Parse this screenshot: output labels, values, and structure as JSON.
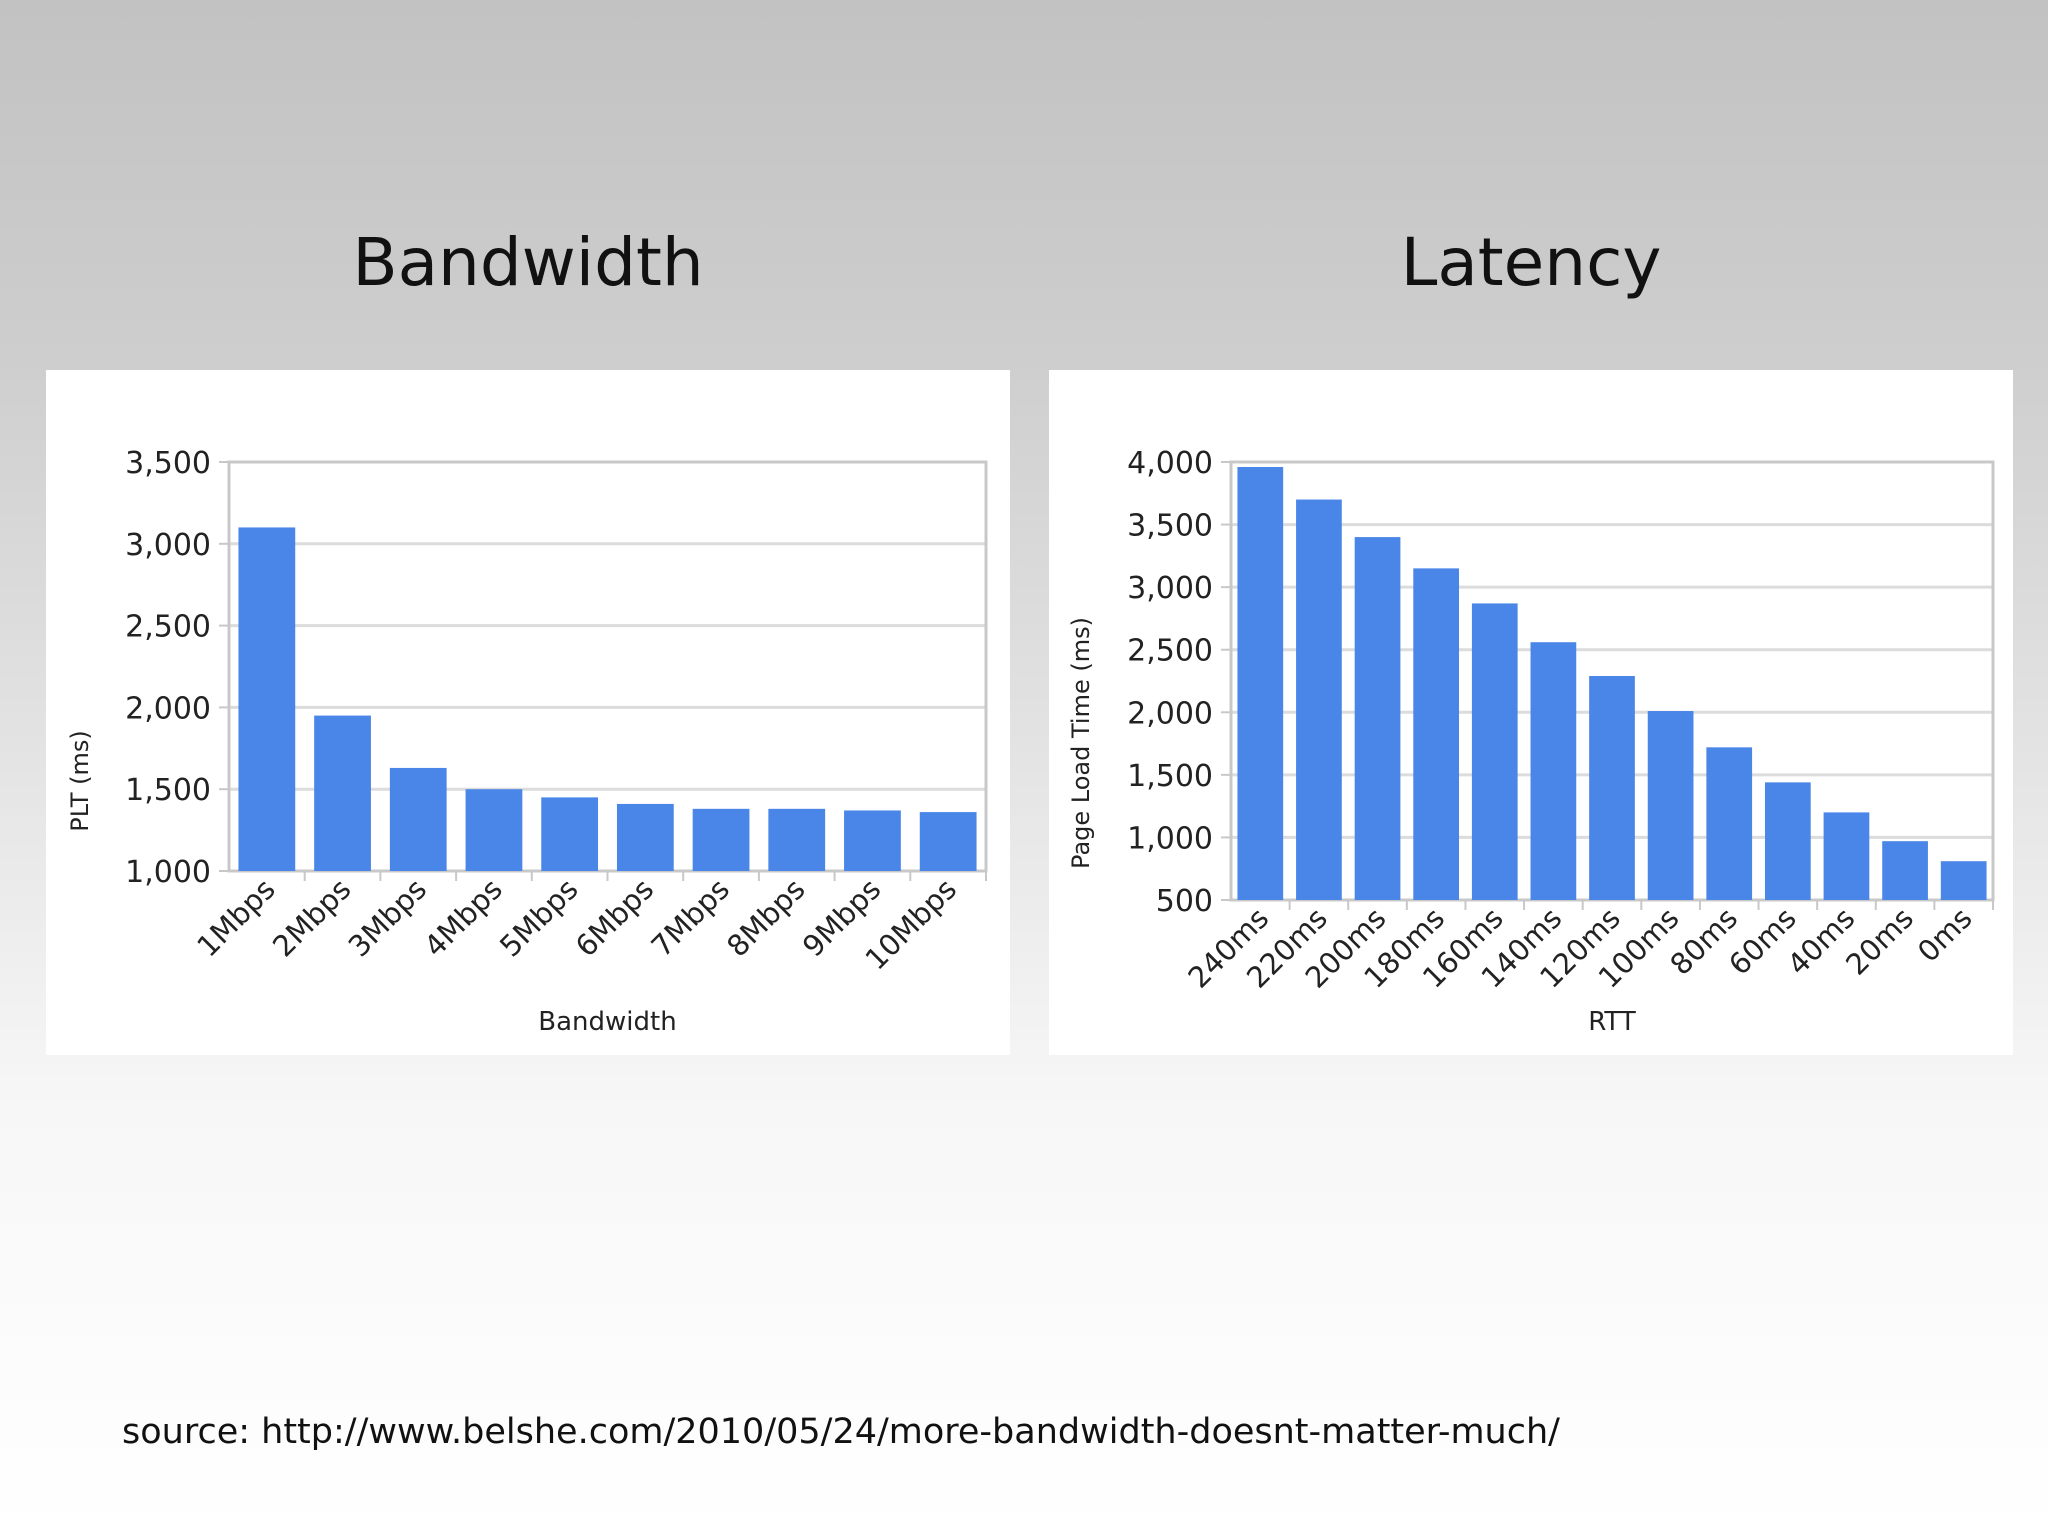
{
  "slide": {
    "headings": {
      "left": "Bandwidth",
      "right": "Latency"
    },
    "source": "source: http://www.belshe.com/2010/05/24/more-bandwidth-doesnt-matter-much/"
  },
  "colors": {
    "bar": "#4a86e8",
    "grid": "#dcdcdc",
    "axis": "#c8c8c8",
    "text": "#222222"
  },
  "chart_data": [
    {
      "type": "bar",
      "title": "",
      "xlabel": "Bandwidth",
      "ylabel": "PLT (ms)",
      "categories": [
        "1Mbps",
        "2Mbps",
        "3Mbps",
        "4Mbps",
        "5Mbps",
        "6Mbps",
        "7Mbps",
        "8Mbps",
        "9Mbps",
        "10Mbps"
      ],
      "values": [
        3100,
        1950,
        1630,
        1500,
        1450,
        1410,
        1380,
        1380,
        1370,
        1360
      ],
      "ylim": [
        1000,
        3500
      ],
      "yticks": [
        1000,
        1500,
        2000,
        2500,
        3000,
        3500
      ],
      "ytick_labels": [
        "1,000",
        "1,500",
        "2,000",
        "2,500",
        "3,000",
        "3,500"
      ],
      "grid": true,
      "legend": "none"
    },
    {
      "type": "bar",
      "title": "",
      "xlabel": "RTT",
      "ylabel": "Page Load Time (ms)",
      "categories": [
        "240ms",
        "220ms",
        "200ms",
        "180ms",
        "160ms",
        "140ms",
        "120ms",
        "100ms",
        "80ms",
        "60ms",
        "40ms",
        "20ms",
        "0ms"
      ],
      "values": [
        3960,
        3700,
        3400,
        3150,
        2870,
        2560,
        2290,
        2010,
        1720,
        1440,
        1200,
        970,
        810
      ],
      "ylim": [
        500,
        4000
      ],
      "yticks": [
        500,
        1000,
        1500,
        2000,
        2500,
        3000,
        3500,
        4000
      ],
      "ytick_labels": [
        "500",
        "1,000",
        "1,500",
        "2,000",
        "2,500",
        "3,000",
        "3,500",
        "4,000"
      ],
      "grid": true,
      "legend": "none"
    }
  ]
}
